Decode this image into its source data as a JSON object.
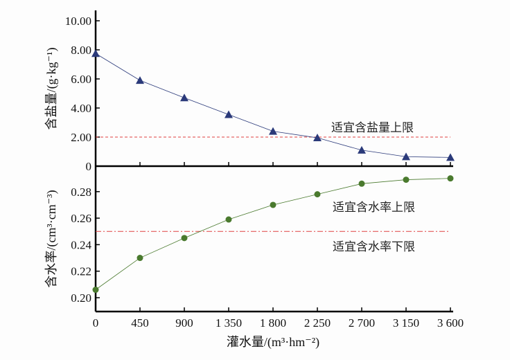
{
  "chart_data": [
    {
      "type": "line",
      "panel": "top",
      "x": [
        0,
        450,
        900,
        1350,
        1800,
        2250,
        2700,
        3150,
        3600
      ],
      "series": [
        {
          "name": "含盐量",
          "marker": "triangle",
          "color": "#2b3a7a",
          "values": [
            7.75,
            5.9,
            4.7,
            3.55,
            2.4,
            1.95,
            1.1,
            0.65,
            0.6
          ]
        }
      ],
      "ylabel": "含盐量/(g·kg⁻¹)",
      "ylim": [
        0,
        10.5
      ],
      "yticks": [
        {
          "v": 0,
          "label": "0"
        },
        {
          "v": 2,
          "label": "2.00"
        },
        {
          "v": 4,
          "label": "4.00"
        },
        {
          "v": 6,
          "label": "6.00"
        },
        {
          "v": 8,
          "label": "8.00"
        },
        {
          "v": 10,
          "label": "10.00"
        }
      ],
      "reference": {
        "value": 2.0,
        "label": "适宜含盐量上限",
        "color": "#e04040",
        "style": "dashed"
      }
    },
    {
      "type": "line",
      "panel": "bottom",
      "x": [
        0,
        450,
        900,
        1350,
        1800,
        2250,
        2700,
        3150,
        3600
      ],
      "series": [
        {
          "name": "含水率",
          "marker": "circle",
          "color": "#4a7a2e",
          "values": [
            0.206,
            0.23,
            0.245,
            0.259,
            0.27,
            0.278,
            0.286,
            0.289,
            0.29
          ]
        }
      ],
      "ylabel": "含水率/(cm³·cm⁻³)",
      "ylim": [
        0.19,
        0.2955
      ],
      "yticks": [
        {
          "v": 0.2,
          "label": "0.20"
        },
        {
          "v": 0.22,
          "label": "0.22"
        },
        {
          "v": 0.24,
          "label": "0.24"
        },
        {
          "v": 0.26,
          "label": "0.26"
        },
        {
          "v": 0.28,
          "label": "0.28"
        }
      ],
      "reference": {
        "value": 0.25,
        "color": "#e04040",
        "style": "dash-dot"
      },
      "annotations": [
        "适宜含水率上限",
        "适宜含水率下限"
      ],
      "xlabel": "灌水量/(m³·hm⁻²)",
      "xticks": [
        "0",
        "450",
        "900",
        "1 350",
        "1 800",
        "2 250",
        "2 700",
        "3 150",
        "3 600"
      ],
      "xlim": [
        0,
        3600
      ]
    }
  ]
}
